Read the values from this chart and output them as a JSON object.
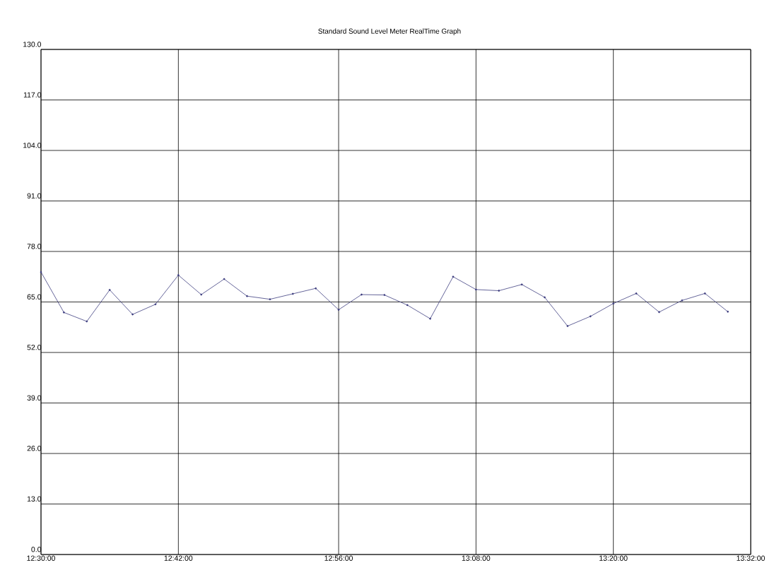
{
  "chart_data": {
    "type": "line",
    "title": "Standard Sound Level Meter RealTime Graph",
    "x": [
      12.5,
      12.533333,
      12.566667,
      12.6,
      12.633333,
      12.666667,
      12.7,
      12.733333,
      12.766667,
      12.8,
      12.833333,
      12.866667,
      12.9,
      12.933333,
      12.966667,
      13.0,
      13.033333,
      13.066667,
      13.1,
      13.133333,
      13.166667,
      13.2,
      13.233333,
      13.266667,
      13.3,
      13.333333,
      13.366667,
      13.4,
      13.433333,
      13.466667,
      13.5
    ],
    "series": [
      {
        "color": "#3f3f80",
        "values": [
          72.7,
          62.3,
          60.0,
          68.1,
          61.8,
          64.4,
          71.9,
          66.9,
          70.9,
          66.5,
          65.7,
          67.1,
          68.5,
          63.0,
          66.9,
          66.8,
          64.2,
          60.7,
          71.5,
          68.2,
          67.9,
          69.5,
          66.2,
          58.8,
          61.3,
          64.6,
          67.2,
          62.4,
          65.4,
          67.2,
          62.5
        ]
      }
    ],
    "xlim": [
      12.5,
      13.533333
    ],
    "ylim": [
      0,
      130
    ],
    "xticks": [
      {
        "value": 12.5,
        "label": "12:30:00"
      },
      {
        "value": 12.7,
        "label": "12:42:00"
      },
      {
        "value": 12.933333,
        "label": "12:56:00"
      },
      {
        "value": 13.133333,
        "label": "13:08:00"
      },
      {
        "value": 13.333333,
        "label": "13:20:00"
      },
      {
        "value": 13.533333,
        "label": "13:32:00"
      }
    ],
    "yticks": [
      {
        "value": 0,
        "label": "0.0"
      },
      {
        "value": 13,
        "label": "13.0"
      },
      {
        "value": 26,
        "label": "26.0"
      },
      {
        "value": 39,
        "label": "39.0"
      },
      {
        "value": 52,
        "label": "52.0"
      },
      {
        "value": 65,
        "label": "65.0"
      },
      {
        "value": 78,
        "label": "78.0"
      },
      {
        "value": 91,
        "label": "91.0"
      },
      {
        "value": 104,
        "label": "104.0"
      },
      {
        "value": 117,
        "label": "117.0"
      },
      {
        "value": 130,
        "label": "130.0"
      }
    ],
    "grid": true,
    "marker": "circle",
    "line_style": "solid"
  }
}
